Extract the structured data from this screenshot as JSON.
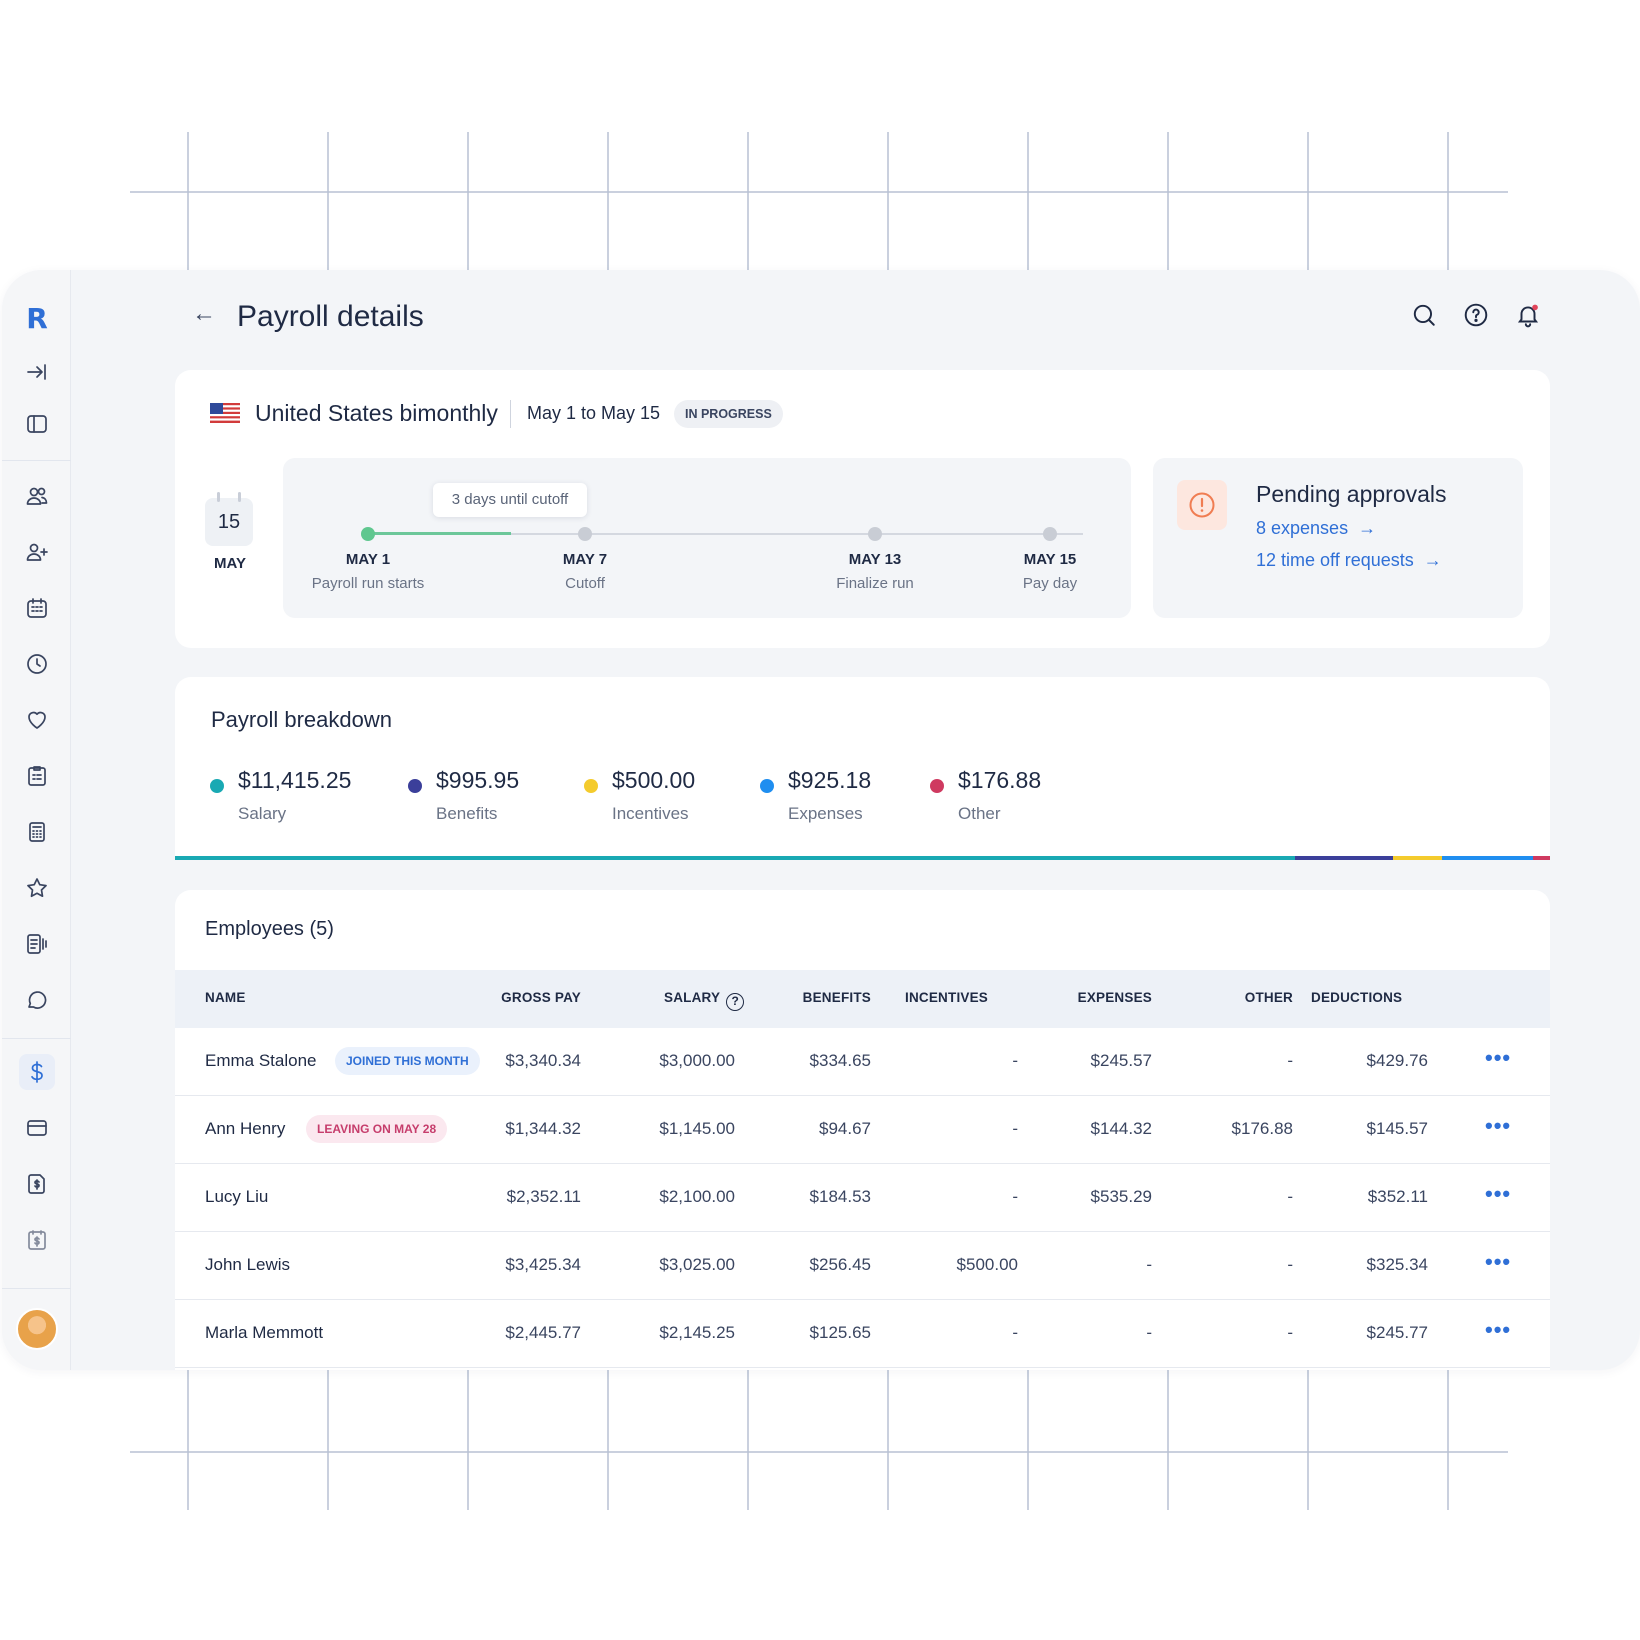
{
  "header": {
    "back_label": "←",
    "title": "Payroll details",
    "icons": [
      "search-icon",
      "help-icon",
      "bell-icon"
    ]
  },
  "sidebar": {
    "logo": "R",
    "items": [
      {
        "name": "collapse",
        "icon": "arrow-right-bar-icon"
      },
      {
        "name": "panel",
        "icon": "panel-icon"
      },
      {
        "name": "people",
        "icon": "users-icon"
      },
      {
        "name": "add-person",
        "icon": "user-plus-icon"
      },
      {
        "name": "calendar",
        "icon": "calendar-icon"
      },
      {
        "name": "time",
        "icon": "clock-icon"
      },
      {
        "name": "benefits",
        "icon": "heart-icon"
      },
      {
        "name": "reports",
        "icon": "clipboard-icon"
      },
      {
        "name": "calculator",
        "icon": "calculator-icon"
      },
      {
        "name": "favorites",
        "icon": "star-icon"
      },
      {
        "name": "documents",
        "icon": "document-icon"
      },
      {
        "name": "messages",
        "icon": "chat-icon"
      },
      {
        "name": "payroll",
        "icon": "dollar-icon",
        "active": true
      },
      {
        "name": "cards",
        "icon": "card-icon"
      },
      {
        "name": "expenses",
        "icon": "receipt-dollar-icon"
      },
      {
        "name": "invoices",
        "icon": "invoice-dollar-icon"
      }
    ],
    "accent_color": "#2f6fd6"
  },
  "run": {
    "title": "United States bimonthly",
    "range": "May 1 to May 15",
    "status": "IN PROGRESS",
    "calendar_day": "15",
    "calendar_month": "MAY",
    "cutoff_tooltip": "3 days until cutoff",
    "progress_fraction": 0.2,
    "milestones": [
      {
        "date": "MAY 1",
        "label": "Payroll run starts",
        "done": true
      },
      {
        "date": "MAY 7",
        "label": "Cutoff",
        "done": false
      },
      {
        "date": "MAY 13",
        "label": "Finalize run",
        "done": false
      },
      {
        "date": "MAY 15",
        "label": "Pay day",
        "done": false
      }
    ]
  },
  "approvals": {
    "title": "Pending approvals",
    "expenses_link": "8 expenses",
    "timeoff_link": "12 time off requests",
    "arrow": "→"
  },
  "breakdown": {
    "title": "Payroll breakdown",
    "items": [
      {
        "value": "$11,415.25",
        "label": "Salary",
        "color": "#19a9b3"
      },
      {
        "value": "$995.95",
        "label": "Benefits",
        "color": "#3b3f9a"
      },
      {
        "value": "$500.00",
        "label": "Incentives",
        "color": "#f4cb2d"
      },
      {
        "value": "$925.18",
        "label": "Expenses",
        "color": "#1f8ef0"
      },
      {
        "value": "$176.88",
        "label": "Other",
        "color": "#cf3a60"
      }
    ]
  },
  "employees": {
    "title": "Employees (5)",
    "columns": [
      "NAME",
      "GROSS PAY",
      "SALARY",
      "BENEFITS",
      "INCENTIVES",
      "EXPENSES",
      "OTHER",
      "DEDUCTIONS"
    ],
    "more_label": "•••",
    "rows": [
      {
        "name": "Emma Stalone",
        "tag": "JOINED THIS MONTH",
        "tag_type": "blue",
        "gross": "$3,340.34",
        "salary": "$3,000.00",
        "benefits": "$334.65",
        "incentives": "-",
        "expenses": "$245.57",
        "other": "-",
        "deductions": "$429.76"
      },
      {
        "name": "Ann Henry",
        "tag": "LEAVING ON MAY 28",
        "tag_type": "pink",
        "gross": "$1,344.32",
        "salary": "$1,145.00",
        "benefits": "$94.67",
        "incentives": "-",
        "expenses": "$144.32",
        "other": "$176.88",
        "deductions": "$145.57"
      },
      {
        "name": "Lucy Liu",
        "tag": "",
        "tag_type": "",
        "gross": "$2,352.11",
        "salary": "$2,100.00",
        "benefits": "$184.53",
        "incentives": "-",
        "expenses": "$535.29",
        "other": "-",
        "deductions": "$352.11"
      },
      {
        "name": "John Lewis",
        "tag": "",
        "tag_type": "",
        "gross": "$3,425.34",
        "salary": "$3,025.00",
        "benefits": "$256.45",
        "incentives": "$500.00",
        "expenses": "-",
        "other": "-",
        "deductions": "$325.34"
      },
      {
        "name": "Marla Memmott",
        "tag": "",
        "tag_type": "",
        "gross": "$2,445.77",
        "salary": "$2,145.25",
        "benefits": "$125.65",
        "incentives": "-",
        "expenses": "-",
        "other": "-",
        "deductions": "$245.77"
      }
    ]
  }
}
